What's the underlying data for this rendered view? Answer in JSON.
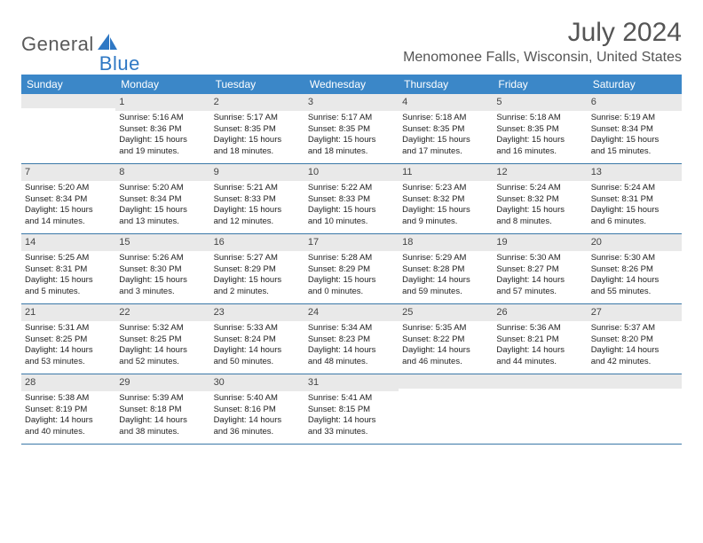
{
  "brand": {
    "part1": "General",
    "part2": "Blue"
  },
  "title": "July 2024",
  "location": "Menomonee Falls, Wisconsin, United States",
  "colors": {
    "header_bg": "#3b87c8",
    "header_text": "#ffffff",
    "daynum_bg": "#e9e9e9",
    "rule": "#3b78a8",
    "brand_gray": "#5a5a5a",
    "brand_blue": "#2f78c4"
  },
  "weekdays": [
    "Sunday",
    "Monday",
    "Tuesday",
    "Wednesday",
    "Thursday",
    "Friday",
    "Saturday"
  ],
  "weeks": [
    [
      {
        "n": "",
        "lines": []
      },
      {
        "n": "1",
        "lines": [
          "Sunrise: 5:16 AM",
          "Sunset: 8:36 PM",
          "Daylight: 15 hours",
          "and 19 minutes."
        ]
      },
      {
        "n": "2",
        "lines": [
          "Sunrise: 5:17 AM",
          "Sunset: 8:35 PM",
          "Daylight: 15 hours",
          "and 18 minutes."
        ]
      },
      {
        "n": "3",
        "lines": [
          "Sunrise: 5:17 AM",
          "Sunset: 8:35 PM",
          "Daylight: 15 hours",
          "and 18 minutes."
        ]
      },
      {
        "n": "4",
        "lines": [
          "Sunrise: 5:18 AM",
          "Sunset: 8:35 PM",
          "Daylight: 15 hours",
          "and 17 minutes."
        ]
      },
      {
        "n": "5",
        "lines": [
          "Sunrise: 5:18 AM",
          "Sunset: 8:35 PM",
          "Daylight: 15 hours",
          "and 16 minutes."
        ]
      },
      {
        "n": "6",
        "lines": [
          "Sunrise: 5:19 AM",
          "Sunset: 8:34 PM",
          "Daylight: 15 hours",
          "and 15 minutes."
        ]
      }
    ],
    [
      {
        "n": "7",
        "lines": [
          "Sunrise: 5:20 AM",
          "Sunset: 8:34 PM",
          "Daylight: 15 hours",
          "and 14 minutes."
        ]
      },
      {
        "n": "8",
        "lines": [
          "Sunrise: 5:20 AM",
          "Sunset: 8:34 PM",
          "Daylight: 15 hours",
          "and 13 minutes."
        ]
      },
      {
        "n": "9",
        "lines": [
          "Sunrise: 5:21 AM",
          "Sunset: 8:33 PM",
          "Daylight: 15 hours",
          "and 12 minutes."
        ]
      },
      {
        "n": "10",
        "lines": [
          "Sunrise: 5:22 AM",
          "Sunset: 8:33 PM",
          "Daylight: 15 hours",
          "and 10 minutes."
        ]
      },
      {
        "n": "11",
        "lines": [
          "Sunrise: 5:23 AM",
          "Sunset: 8:32 PM",
          "Daylight: 15 hours",
          "and 9 minutes."
        ]
      },
      {
        "n": "12",
        "lines": [
          "Sunrise: 5:24 AM",
          "Sunset: 8:32 PM",
          "Daylight: 15 hours",
          "and 8 minutes."
        ]
      },
      {
        "n": "13",
        "lines": [
          "Sunrise: 5:24 AM",
          "Sunset: 8:31 PM",
          "Daylight: 15 hours",
          "and 6 minutes."
        ]
      }
    ],
    [
      {
        "n": "14",
        "lines": [
          "Sunrise: 5:25 AM",
          "Sunset: 8:31 PM",
          "Daylight: 15 hours",
          "and 5 minutes."
        ]
      },
      {
        "n": "15",
        "lines": [
          "Sunrise: 5:26 AM",
          "Sunset: 8:30 PM",
          "Daylight: 15 hours",
          "and 3 minutes."
        ]
      },
      {
        "n": "16",
        "lines": [
          "Sunrise: 5:27 AM",
          "Sunset: 8:29 PM",
          "Daylight: 15 hours",
          "and 2 minutes."
        ]
      },
      {
        "n": "17",
        "lines": [
          "Sunrise: 5:28 AM",
          "Sunset: 8:29 PM",
          "Daylight: 15 hours",
          "and 0 minutes."
        ]
      },
      {
        "n": "18",
        "lines": [
          "Sunrise: 5:29 AM",
          "Sunset: 8:28 PM",
          "Daylight: 14 hours",
          "and 59 minutes."
        ]
      },
      {
        "n": "19",
        "lines": [
          "Sunrise: 5:30 AM",
          "Sunset: 8:27 PM",
          "Daylight: 14 hours",
          "and 57 minutes."
        ]
      },
      {
        "n": "20",
        "lines": [
          "Sunrise: 5:30 AM",
          "Sunset: 8:26 PM",
          "Daylight: 14 hours",
          "and 55 minutes."
        ]
      }
    ],
    [
      {
        "n": "21",
        "lines": [
          "Sunrise: 5:31 AM",
          "Sunset: 8:25 PM",
          "Daylight: 14 hours",
          "and 53 minutes."
        ]
      },
      {
        "n": "22",
        "lines": [
          "Sunrise: 5:32 AM",
          "Sunset: 8:25 PM",
          "Daylight: 14 hours",
          "and 52 minutes."
        ]
      },
      {
        "n": "23",
        "lines": [
          "Sunrise: 5:33 AM",
          "Sunset: 8:24 PM",
          "Daylight: 14 hours",
          "and 50 minutes."
        ]
      },
      {
        "n": "24",
        "lines": [
          "Sunrise: 5:34 AM",
          "Sunset: 8:23 PM",
          "Daylight: 14 hours",
          "and 48 minutes."
        ]
      },
      {
        "n": "25",
        "lines": [
          "Sunrise: 5:35 AM",
          "Sunset: 8:22 PM",
          "Daylight: 14 hours",
          "and 46 minutes."
        ]
      },
      {
        "n": "26",
        "lines": [
          "Sunrise: 5:36 AM",
          "Sunset: 8:21 PM",
          "Daylight: 14 hours",
          "and 44 minutes."
        ]
      },
      {
        "n": "27",
        "lines": [
          "Sunrise: 5:37 AM",
          "Sunset: 8:20 PM",
          "Daylight: 14 hours",
          "and 42 minutes."
        ]
      }
    ],
    [
      {
        "n": "28",
        "lines": [
          "Sunrise: 5:38 AM",
          "Sunset: 8:19 PM",
          "Daylight: 14 hours",
          "and 40 minutes."
        ]
      },
      {
        "n": "29",
        "lines": [
          "Sunrise: 5:39 AM",
          "Sunset: 8:18 PM",
          "Daylight: 14 hours",
          "and 38 minutes."
        ]
      },
      {
        "n": "30",
        "lines": [
          "Sunrise: 5:40 AM",
          "Sunset: 8:16 PM",
          "Daylight: 14 hours",
          "and 36 minutes."
        ]
      },
      {
        "n": "31",
        "lines": [
          "Sunrise: 5:41 AM",
          "Sunset: 8:15 PM",
          "Daylight: 14 hours",
          "and 33 minutes."
        ]
      },
      {
        "n": "",
        "lines": []
      },
      {
        "n": "",
        "lines": []
      },
      {
        "n": "",
        "lines": []
      }
    ]
  ]
}
